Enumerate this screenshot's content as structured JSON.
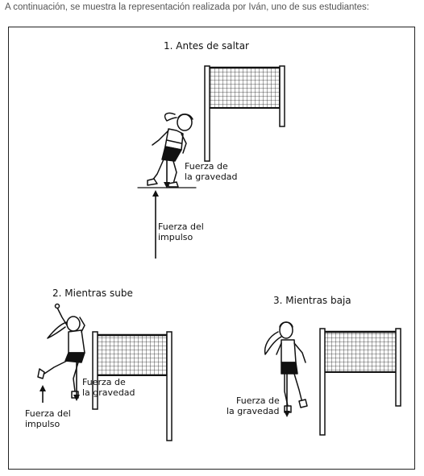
{
  "intro_text": "A continuación, se muestra la representación realizada por Iván, uno de sus estudiantes:",
  "panels": [
    {
      "title": "1. Antes de saltar",
      "labels": {
        "gravity_line1": "Fuerza de",
        "gravity_line2": "la gravedad",
        "impulse_line1": "Fuerza del",
        "impulse_line2": "impulso"
      }
    },
    {
      "title": "2. Mientras sube",
      "labels": {
        "gravity_line1": "Fuerza de",
        "gravity_line2": "la gravedad",
        "impulse_line1": "Fuerza del",
        "impulse_line2": "impulso"
      }
    },
    {
      "title": "3. Mientras baja",
      "labels": {
        "gravity_line1": "Fuerza de",
        "gravity_line2": "la gravedad"
      }
    }
  ],
  "colors": {
    "ink": "#111111",
    "intro_text": "#555555"
  },
  "icons": [
    "volleyball-net",
    "volleyball-player",
    "force-arrow"
  ]
}
